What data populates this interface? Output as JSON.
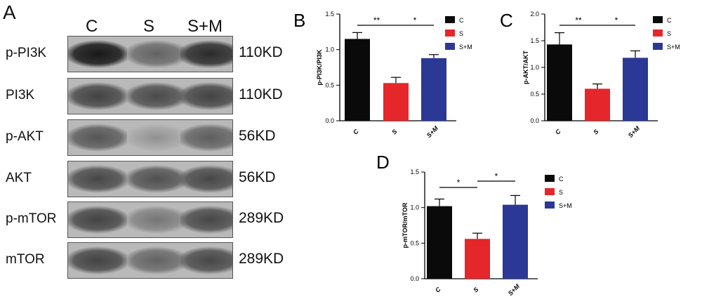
{
  "western_blot": {
    "panel_letter": "A",
    "lanes": [
      "C",
      "S",
      "S+M"
    ],
    "rows": [
      {
        "label": "p-PI3K",
        "kd": "110KD",
        "intensity": [
          0.95,
          0.55,
          0.85
        ]
      },
      {
        "label": "PI3K",
        "kd": "110KD",
        "intensity": [
          0.72,
          0.68,
          0.72
        ]
      },
      {
        "label": "p-AKT",
        "kd": "56KD",
        "intensity": [
          0.62,
          0.3,
          0.58
        ]
      },
      {
        "label": "AKT",
        "kd": "56KD",
        "intensity": [
          0.7,
          0.65,
          0.7
        ]
      },
      {
        "label": "p-mTOR",
        "kd": "289KD",
        "intensity": [
          0.72,
          0.45,
          0.7
        ]
      },
      {
        "label": "mTOR",
        "kd": "289KD",
        "intensity": [
          0.72,
          0.55,
          0.7
        ]
      }
    ]
  },
  "chart_data": [
    {
      "panel": "B",
      "type": "bar",
      "categories": [
        "C",
        "S",
        "S+M"
      ],
      "values": [
        1.15,
        0.53,
        0.88
      ],
      "errors": [
        0.09,
        0.08,
        0.05
      ],
      "ylabel": "p-PI3K/PI3K",
      "ylim": [
        0,
        1.5
      ],
      "yticks": [
        "0.0",
        "0.5",
        "1.0",
        "1.5"
      ],
      "significance": [
        {
          "from": "C",
          "to": "S",
          "label": "**"
        },
        {
          "from": "S",
          "to": "S+M",
          "label": "*"
        }
      ],
      "legend": [
        "C",
        "S",
        "S+M"
      ],
      "legend_position": "right"
    },
    {
      "panel": "C",
      "type": "bar",
      "categories": [
        "C",
        "S",
        "S+M"
      ],
      "values": [
        1.43,
        0.6,
        1.18
      ],
      "errors": [
        0.22,
        0.09,
        0.13
      ],
      "ylabel": "p-AKT/AKT",
      "ylim": [
        0,
        2.0
      ],
      "yticks": [
        "0.0",
        "0.5",
        "1.0",
        "1.5",
        "2.0"
      ],
      "significance": [
        {
          "from": "C",
          "to": "S",
          "label": "**"
        },
        {
          "from": "S",
          "to": "S+M",
          "label": "*"
        }
      ],
      "legend": [
        "C",
        "S",
        "S+M"
      ],
      "legend_position": "right"
    },
    {
      "panel": "D",
      "type": "bar",
      "categories": [
        "C",
        "S",
        "S+M"
      ],
      "values": [
        1.02,
        0.56,
        1.04
      ],
      "errors": [
        0.1,
        0.08,
        0.13
      ],
      "ylabel": "p-mTOR/mTOR",
      "ylim": [
        0,
        1.5
      ],
      "yticks": [
        "0.0",
        "0.5",
        "1.0",
        "1.5"
      ],
      "significance": [
        {
          "from": "C",
          "to": "S",
          "label": "*"
        },
        {
          "from": "S",
          "to": "S+M",
          "label": "*"
        }
      ],
      "legend": [
        "C",
        "S",
        "S+M"
      ],
      "legend_position": "right"
    }
  ],
  "colors": {
    "C": "#0a0a0a",
    "S": "#e5262b",
    "S+M": "#2b3896"
  }
}
